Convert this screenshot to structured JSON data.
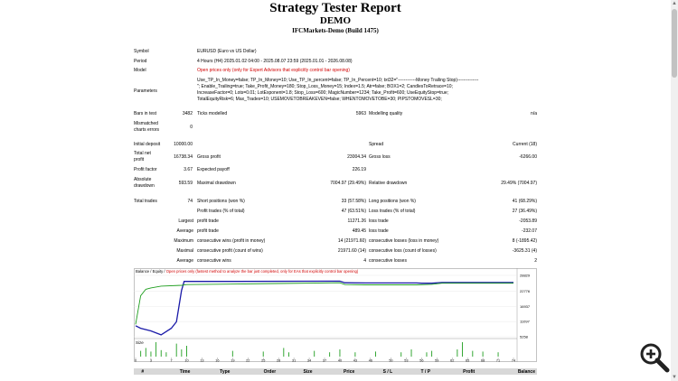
{
  "report": {
    "title": "Strategy Tester Report",
    "subtitle": "DEMO",
    "server": "IFCMarkets-Demo (Build 1475)"
  },
  "rows": [
    {
      "label": "Symbol",
      "value": "EURUSD (Euro vs US Dollar)"
    },
    {
      "label": "Period",
      "value": "4 Hours (H4) 2025.01.02 04:00 - 2025.08.07 23:59 (2025.01.01 - 2026.08.08)"
    },
    {
      "label": "Model",
      "value": "Open prices only (only for Expert Advisors that explicitly control bar opening)"
    },
    {
      "label": "Parameters",
      "lines": [
        "Use_TP_In_Money=false; TP_In_Money=10; Use_TP_In_percent=false; TP_In_Percent=10; txt32=\"------------Money Trailing Stop)--------------",
        "\"; Enable_Trailing=true; Take_Profit_Money=180; Stop_Loss_Money=15; Index=1.5; Atr=false; BOX1=2; CandlesToRetrace=10;",
        "IncreaseFactor=0; Lots=0.01; LotExponent=1.8; Stop_Loss=600; MagicNumber=1234; Take_Profit=600; UseEquityStop=true;",
        "TotalEquityRisk=6; Max_Trades=10; USEMOVETOBREAKEVEN=false; WHENTOMOVETOBE=30; PIPSTOMOVESL=30;"
      ]
    }
  ],
  "stats": {
    "bars_label": "Bars in test",
    "bars": "3482",
    "ticks_label": "Ticks modelled",
    "ticks": "5963",
    "quality_label": "Modelling quality",
    "quality": "n/a",
    "mismatch_label_1": "Mismatched",
    "mismatch_label_2": "charts errors",
    "mismatch": "0",
    "deposit_label": "Initial deposit",
    "deposit": "10000.00",
    "spread_label": "Spread",
    "spread": "Current (18)",
    "net_label_1": "Total net",
    "net_label_2": "profit",
    "net": "16738.34",
    "gross_profit_label": "Gross profit",
    "gross_profit": "23004.34",
    "gross_loss_label": "Gross loss",
    "gross_loss": "-6266.00",
    "pf_label": "Profit factor",
    "pf": "3.67",
    "payoff_label": "Expected payoff",
    "payoff": "226.19",
    "abs_dd_label_1": "Absolute",
    "abs_dd_label_2": "drawdown",
    "abs_dd": "593.59",
    "max_dd_label": "Maximal drawdown",
    "max_dd": "7004.97 (29.49%)",
    "rel_dd_label": "Relative drawdown",
    "rel_dd": "29.49% (7004.97)",
    "trades_label": "Total trades",
    "trades": "74",
    "short_label": "Short positions (won %)",
    "short": "33 (57.58%)",
    "long_label": "Long positions (won %)",
    "long": "41 (68.29%)",
    "pt_label": "Profit trades (% of total)",
    "pt": "47 (63.51%)",
    "lt_label": "Loss trades (% of total)",
    "lt": "27 (36.49%)",
    "largest_label": "Largest",
    "lp_label": "profit trade",
    "lp": "11271.26",
    "ll_label": "loss trade",
    "ll": "-2053.89",
    "average_label": "Average",
    "ap_label": "profit trade",
    "ap": "489.45",
    "al_label": "loss trade",
    "al": "-232.07",
    "maximum_label": "Maximum",
    "mcw_label": "consecutive wins (profit in money)",
    "mcw": "14 (21971.60)",
    "mcl_label": "consecutive losses (loss in money)",
    "mcl": "8 (-1895.42)",
    "maximal_label": "Maximal",
    "mcp_label": "consecutive profit (count of wins)",
    "mcp": "21971.60 (14)",
    "mcll_label": "consecutive loss (count of losses)",
    "mcll": "-3625.31 (4)",
    "avg2_label": "Average",
    "acw_label": "consecutive wins",
    "acw": "4",
    "acl_label": "consecutive losses",
    "acl": "2"
  },
  "chart_data": {
    "type": "line",
    "legend_prefix": "Balance / Equity / ",
    "legend_note": "Open prices only (fastest method to analyze the bar just completed, only for EAs that explicitly control bar opening)",
    "size_label": "Size",
    "y_ticks": [
      "28829",
      "22776",
      "16937",
      "11097",
      "5258"
    ],
    "x_ticks": [
      "0",
      "3",
      "7",
      "10",
      "13",
      "16",
      "19",
      "22",
      "25",
      "28",
      "31",
      "34",
      "37",
      "40",
      "43",
      "46",
      "50",
      "53",
      "56",
      "59",
      "62",
      "65",
      "68",
      "71",
      "74"
    ],
    "ylim": [
      5258,
      28829
    ],
    "balance": [
      [
        0,
        9500
      ],
      [
        1,
        8500
      ],
      [
        3,
        7500
      ],
      [
        5,
        6000
      ],
      [
        7,
        8500
      ],
      [
        8,
        11000
      ],
      [
        8.5,
        17000
      ],
      [
        9,
        23000
      ],
      [
        9.5,
        26500
      ],
      [
        20,
        26500
      ],
      [
        40,
        26600
      ],
      [
        41,
        26000
      ],
      [
        45,
        25900
      ],
      [
        55,
        25900
      ],
      [
        56,
        25800
      ],
      [
        58,
        25800
      ],
      [
        60,
        26100
      ],
      [
        74,
        26100
      ]
    ],
    "equity": [
      [
        0,
        10000
      ],
      [
        1,
        21000
      ],
      [
        2,
        23500
      ],
      [
        3,
        24000
      ],
      [
        5,
        24700
      ],
      [
        9,
        25000
      ],
      [
        10,
        25300
      ],
      [
        20,
        25500
      ],
      [
        28,
        25700
      ],
      [
        40,
        26000
      ],
      [
        41,
        25300
      ],
      [
        45,
        25200
      ],
      [
        55,
        25200
      ],
      [
        58,
        25400
      ],
      [
        60,
        25800
      ],
      [
        74,
        25800
      ]
    ],
    "size_bars": [
      [
        1,
        0.4
      ],
      [
        2,
        0.6
      ],
      [
        3,
        0.35
      ],
      [
        4,
        1.0
      ],
      [
        5,
        0.45
      ],
      [
        6,
        0.3
      ],
      [
        8,
        0.9
      ],
      [
        9,
        0.5
      ],
      [
        10,
        0.75
      ],
      [
        19,
        0.4
      ],
      [
        25,
        0.35
      ],
      [
        29,
        0.6
      ],
      [
        30,
        0.3
      ],
      [
        35,
        0.4
      ],
      [
        38,
        0.3
      ],
      [
        40,
        0.5
      ],
      [
        43,
        0.3
      ],
      [
        47,
        0.35
      ],
      [
        52,
        0.3
      ],
      [
        54,
        0.5
      ],
      [
        57,
        0.3
      ],
      [
        58,
        0.4
      ],
      [
        63,
        0.5
      ],
      [
        64,
        1.0
      ],
      [
        66,
        0.4
      ],
      [
        68,
        0.35
      ],
      [
        71,
        0.3
      ]
    ]
  },
  "trades_table": {
    "headers": [
      "#",
      "Time",
      "Type",
      "Order",
      "Size",
      "Price",
      "S / L",
      "T / P",
      "Profit",
      "Balance"
    ]
  },
  "colors": {
    "balance": "#1a1aa8",
    "equity": "#1f9e1f",
    "size": "#1f9e1f",
    "model": "#d10000"
  }
}
